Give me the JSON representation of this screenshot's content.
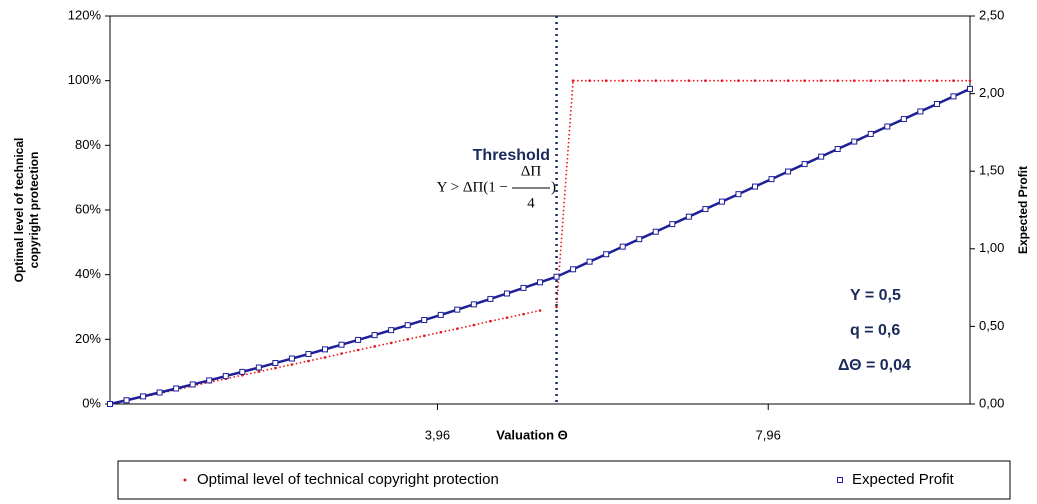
{
  "chart_data": {
    "type": "line",
    "xlabel": "Valuation Θ",
    "ylabel": [
      "Optimal level of technical",
      "copyright protection"
    ],
    "y2label": "Expected Profit",
    "xlim": [
      0,
      10.4
    ],
    "xticks": [
      {
        "value": 3.96,
        "label": "3,96"
      },
      {
        "value": 7.96,
        "label": "7,96"
      }
    ],
    "ylim": [
      0,
      120
    ],
    "yticks": [
      {
        "value": 0,
        "label": "0%"
      },
      {
        "value": 20,
        "label": "20%"
      },
      {
        "value": 40,
        "label": "40%"
      },
      {
        "value": 60,
        "label": "60%"
      },
      {
        "value": 80,
        "label": "80%"
      },
      {
        "value": 100,
        "label": "100%"
      },
      {
        "value": 120,
        "label": "120%"
      }
    ],
    "y2lim": [
      0,
      2.5
    ],
    "y2ticks": [
      {
        "value": 0,
        "label": "0,00"
      },
      {
        "value": 0.5,
        "label": "0,50"
      },
      {
        "value": 1,
        "label": "1,00"
      },
      {
        "value": 1.5,
        "label": "1,50"
      },
      {
        "value": 2,
        "label": "2,00"
      },
      {
        "value": 2.5,
        "label": "2,50"
      }
    ],
    "threshold": 5.4,
    "annotations": {
      "threshold_label": "Threshold",
      "formula": {
        "left": "Y > ΔΠ(1 −",
        "numerator": "ΔΠ",
        "denominator": "4",
        "right": ")"
      },
      "params": [
        "Y = 0,5",
        "q = 0,6",
        "ΔΘ = 0,04"
      ]
    },
    "legend": "bottom",
    "x": [
      0,
      0.2,
      0.4,
      0.6,
      0.8,
      1,
      1.2,
      1.4,
      1.6,
      1.8,
      2,
      2.2,
      2.4,
      2.6,
      2.8,
      3,
      3.2,
      3.4,
      3.6,
      3.8,
      4,
      4.2,
      4.4,
      4.6,
      4.8,
      5,
      5.2,
      5.4,
      5.6,
      5.8,
      6,
      6.2,
      6.4,
      6.6,
      6.8,
      7,
      7.2,
      7.4,
      7.6,
      7.8,
      8,
      8.2,
      8.4,
      8.6,
      8.8,
      9,
      9.2,
      9.4,
      9.6,
      9.8,
      10,
      10.2,
      10.4
    ],
    "series": [
      {
        "name": "Optimal level of technical copyright protection",
        "color": "#e8141c",
        "marker": "dot",
        "values": [
          0,
          1.1,
          2.2,
          3.3,
          4.4,
          5.6,
          6.7,
          7.8,
          8.9,
          10,
          11.1,
          12.2,
          13.3,
          14.4,
          15.6,
          16.7,
          17.8,
          18.9,
          20,
          21.1,
          22.2,
          23.3,
          24.4,
          25.6,
          26.7,
          27.8,
          28.9,
          30,
          100,
          100,
          100,
          100,
          100,
          100,
          100,
          100,
          100,
          100,
          100,
          100,
          100,
          100,
          100,
          100,
          100,
          100,
          100,
          100,
          100,
          100,
          100,
          100,
          100
        ]
      },
      {
        "name": "Expected Profit",
        "color": "#1f1f99",
        "marker": "square",
        "axis": "y2",
        "values": [
          0,
          0.024,
          0.049,
          0.074,
          0.1,
          0.126,
          0.152,
          0.18,
          0.207,
          0.235,
          0.264,
          0.293,
          0.322,
          0.352,
          0.382,
          0.413,
          0.444,
          0.476,
          0.508,
          0.541,
          0.574,
          0.608,
          0.642,
          0.677,
          0.712,
          0.748,
          0.784,
          0.82,
          0.868,
          0.917,
          0.965,
          1.014,
          1.062,
          1.11,
          1.159,
          1.207,
          1.256,
          1.304,
          1.352,
          1.401,
          1.449,
          1.498,
          1.546,
          1.594,
          1.643,
          1.691,
          1.74,
          1.788,
          1.836,
          1.885,
          1.933,
          1.982,
          2.03
        ]
      }
    ]
  }
}
